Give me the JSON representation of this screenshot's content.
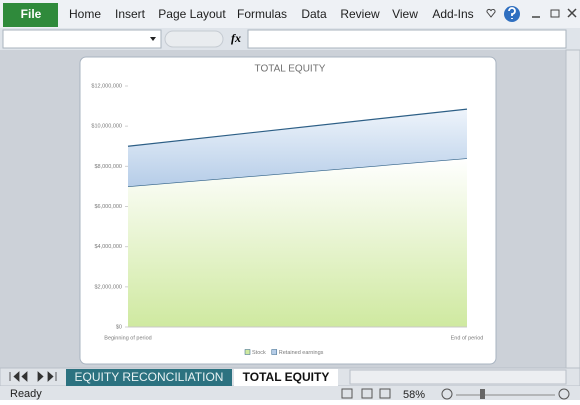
{
  "ribbon": {
    "tabs": [
      "File",
      "Home",
      "Insert",
      "Page Layout",
      "Formulas",
      "Data",
      "Review",
      "View",
      "Add-Ins"
    ]
  },
  "formula_bar": {
    "fx": "fx"
  },
  "sheet_tabs": [
    "EQUITY RECONCILIATION",
    "TOTAL EQUITY"
  ],
  "status_bar": {
    "status": "Ready",
    "zoom": "58%"
  },
  "chart_data": {
    "type": "stacked-area",
    "title": "TOTAL EQUITY",
    "categories": [
      "Beginning of period",
      "End of period"
    ],
    "series": [
      {
        "name": "Stock",
        "color": "#cfe9a0",
        "values": [
          7000000,
          8400000
        ]
      },
      {
        "name": "Retained earnings",
        "color": "#b6cde8",
        "values": [
          2000000,
          2450000
        ]
      }
    ],
    "ylim": [
      0,
      12000000
    ],
    "yticks": [
      {
        "value": 0,
        "label": "$0"
      },
      {
        "value": 2000000,
        "label": "$2,000,000"
      },
      {
        "value": 4000000,
        "label": "$4,000,000"
      },
      {
        "value": 6000000,
        "label": "$6,000,000"
      },
      {
        "value": 8000000,
        "label": "$8,000,000"
      },
      {
        "value": 10000000,
        "label": "$10,000,000"
      },
      {
        "value": 12000000,
        "label": "$12,000,000"
      }
    ],
    "grid": false,
    "legend": "bottom"
  }
}
